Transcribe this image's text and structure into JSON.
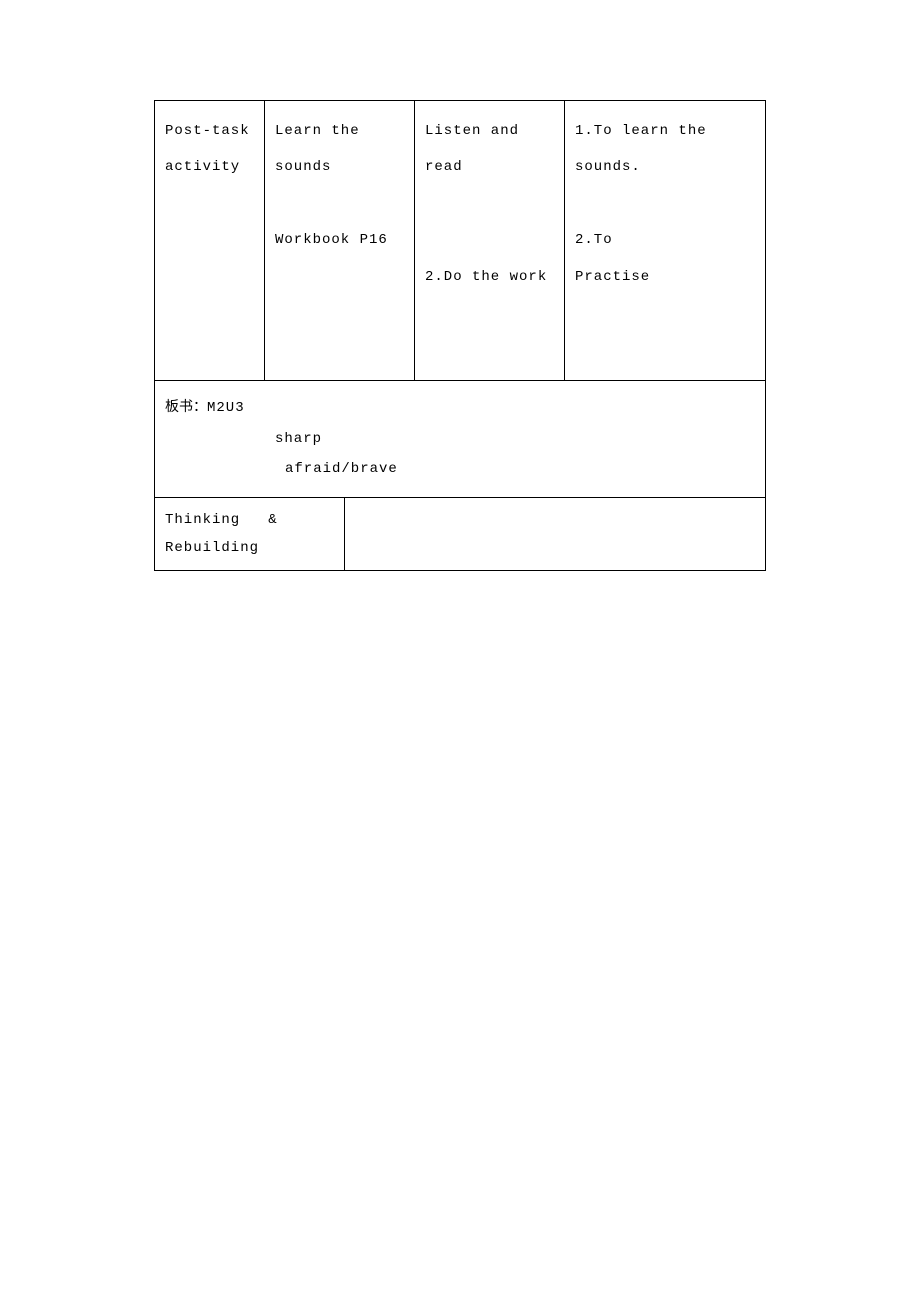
{
  "row1": {
    "c1a": "Post-task",
    "c1b": "activity",
    "c2a": "Learn the sounds",
    "c2b": "Workbook P16",
    "c3a": "Listen and read",
    "c3b": "2.Do the work",
    "c4a": "1.To learn the sounds.",
    "c4b": "2.To",
    "c4c": "Practise"
  },
  "board": {
    "label": "板书：",
    "title": "M2U3",
    "line2": "sharp",
    "line3": "afraid/brave"
  },
  "thinking": {
    "line1": "Thinking",
    "amp": "&",
    "line2": "Rebuilding"
  }
}
